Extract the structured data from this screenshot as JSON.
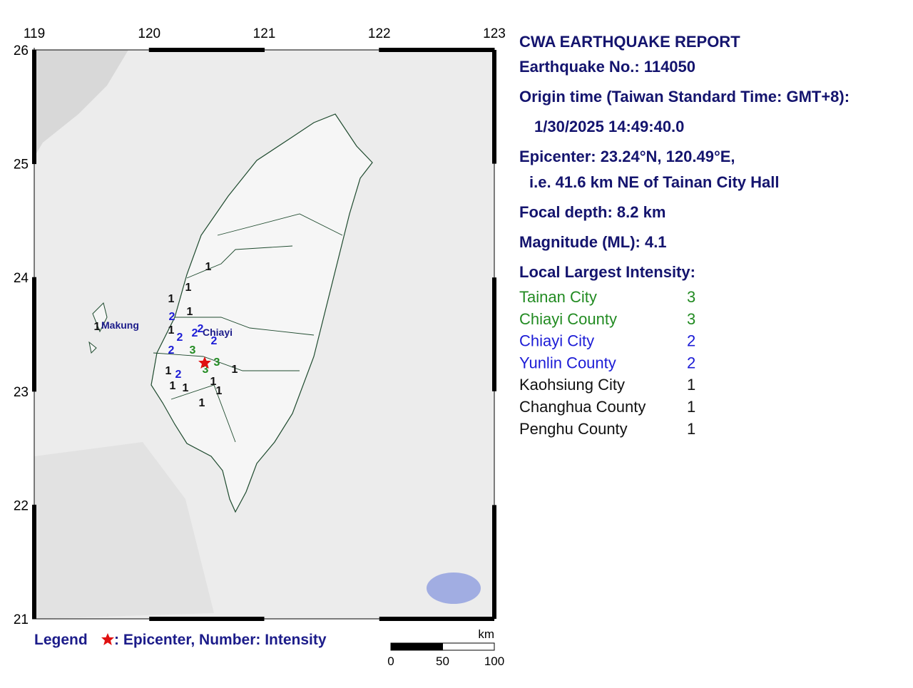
{
  "map": {
    "lon_ticks": [
      119,
      120,
      121,
      122,
      123
    ],
    "lat_ticks": [
      26,
      25,
      24,
      23,
      22,
      21
    ],
    "place_labels": [
      "Makung",
      "Chiayi"
    ],
    "intensities": [
      1,
      1,
      1,
      2,
      1,
      1,
      1,
      2,
      2,
      2,
      2,
      2,
      3,
      1,
      2,
      3,
      3,
      1,
      1,
      1,
      1,
      1,
      1
    ],
    "intensity_colors": {
      "1": "#111111",
      "2": "#1c1cd6",
      "3": "#228b22"
    },
    "scale_bar": {
      "unit": "km",
      "ticks": [
        0,
        50,
        100
      ]
    }
  },
  "legend": {
    "title": "Legend",
    "text": ": Epicenter, Number: Intensity"
  },
  "report": {
    "title": "CWA EARTHQUAKE REPORT",
    "lines": [
      "Earthquake No.: 114050",
      "Origin time (Taiwan Standard Time: GMT+8):",
      "1/30/2025 14:49:40.0",
      "Epicenter: 23.24°N, 120.49°E,",
      "i.e. 41.6 km NE of Tainan City Hall",
      "Focal depth: 8.2 km",
      "Magnitude (ML): 4.1",
      "Local Largest Intensity:"
    ],
    "intensity_table": [
      {
        "name": "Tainan City",
        "value": 3,
        "color": "#228b22"
      },
      {
        "name": "Chiayi County",
        "value": 3,
        "color": "#228b22"
      },
      {
        "name": "Chiayi City",
        "value": 2,
        "color": "#1c1cd6"
      },
      {
        "name": "Yunlin County",
        "value": 2,
        "color": "#1c1cd6"
      },
      {
        "name": "Kaohsiung City",
        "value": 1,
        "color": "#111111"
      },
      {
        "name": "Changhua County",
        "value": 1,
        "color": "#111111"
      },
      {
        "name": "Penghu County",
        "value": 1,
        "color": "#111111"
      }
    ]
  }
}
